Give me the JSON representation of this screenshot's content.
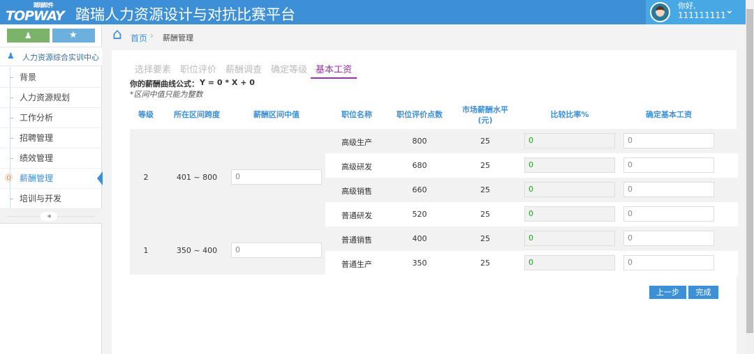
{
  "header": {
    "logo_text": "TOPWAY",
    "logo_sub": "踏瑞软件",
    "title": "踏瑞人力资源设计与对抗比赛平台",
    "greeting": "你好,",
    "username": "111111111"
  },
  "colors": {
    "primary": "#3d8fd6",
    "green_button": "#7bb36a",
    "active_tab": "#9b2fae",
    "ratio_text": "#2a9a2a"
  },
  "sidebar": {
    "center_label": "人力资源综合实训中心",
    "items": [
      {
        "label": "背景"
      },
      {
        "label": "人力资源规划"
      },
      {
        "label": "工作分析"
      },
      {
        "label": "招聘管理"
      },
      {
        "label": "绩效管理"
      },
      {
        "label": "薪酬管理",
        "active": true
      },
      {
        "label": "培训与开发"
      }
    ]
  },
  "breadcrumb": {
    "home": "首页",
    "current": "薪酬管理"
  },
  "tabs": [
    {
      "label": "选择要素"
    },
    {
      "label": "职位评价"
    },
    {
      "label": "薪酬调查"
    },
    {
      "label": "确定等级"
    },
    {
      "label": "基本工资",
      "active": true
    }
  ],
  "formula": {
    "label": "你的薪酬曲线公式：",
    "value": "Y = 0 * X + 0",
    "note": "*区间中值只能为整数"
  },
  "table": {
    "headers": [
      "等级",
      "所在区间跨度",
      "薪酬区间中值",
      "职位名称",
      "职位评价点数",
      "市场薪酬水平",
      "(元)",
      "比较比率%",
      "确定基本工资"
    ],
    "groups": [
      {
        "grade": "2",
        "range": "401 ~ 800",
        "midpoint": "0"
      },
      {
        "grade": "1",
        "range": "350 ~ 400",
        "midpoint": "0"
      }
    ],
    "rows": [
      {
        "position": "高级生产",
        "points": "800",
        "market": "25",
        "ratio": "0",
        "salary": "0"
      },
      {
        "position": "高级研发",
        "points": "680",
        "market": "25",
        "ratio": "0",
        "salary": "0"
      },
      {
        "position": "高级销售",
        "points": "660",
        "market": "25",
        "ratio": "0",
        "salary": "0"
      },
      {
        "position": "普通研发",
        "points": "520",
        "market": "25",
        "ratio": "0",
        "salary": "0"
      },
      {
        "position": "普通销售",
        "points": "400",
        "market": "25",
        "ratio": "0",
        "salary": "0"
      },
      {
        "position": "普通生产",
        "points": "350",
        "market": "25",
        "ratio": "0",
        "salary": "0"
      }
    ]
  },
  "buttons": {
    "prev": "上一步",
    "finish": "完成"
  }
}
